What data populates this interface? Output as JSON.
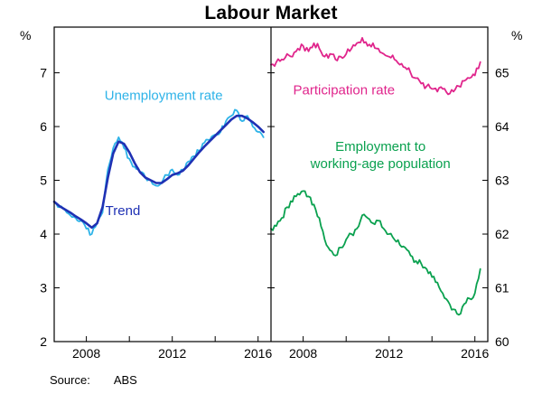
{
  "source": {
    "label": "Source:",
    "value": "ABS"
  },
  "chart_data": {
    "type": "line",
    "title": "Labour Market",
    "x_start": 2006.5,
    "x_step": 0.25,
    "x_range": [
      2006.5,
      2016.6
    ],
    "x_ticks": [
      2008,
      2010,
      2012,
      2014,
      2016
    ],
    "x_tick_labels": [
      "2008",
      "2012",
      "2016"
    ],
    "grid": "off",
    "legend_position": "inline-labels",
    "panels": [
      {
        "name": "unemployment-panel",
        "axis_side": "left",
        "unit": "%",
        "ylim": [
          2,
          7.85
        ],
        "yticks": [
          2,
          3,
          4,
          5,
          6,
          7
        ],
        "series": [
          {
            "id": "unemployment-rate",
            "name": "Unemployment rate",
            "color": "#2eb3e8",
            "lw": 1.8,
            "jitter": 0.05,
            "values": [
              4.6,
              4.5,
              4.45,
              4.35,
              4.3,
              4.25,
              4.1,
              4.0,
              4.2,
              4.4,
              5.2,
              5.6,
              5.8,
              5.6,
              5.4,
              5.25,
              5.15,
              5.05,
              5.0,
              4.9,
              4.95,
              5.1,
              5.2,
              5.1,
              5.2,
              5.35,
              5.45,
              5.55,
              5.7,
              5.75,
              5.85,
              5.9,
              6.1,
              6.2,
              6.3,
              6.1,
              6.2,
              6.0,
              5.9,
              5.8
            ]
          },
          {
            "id": "trend",
            "name": "Trend",
            "color": "#1f31b4",
            "lw": 2.6,
            "jitter": 0,
            "values": [
              4.6,
              4.52,
              4.46,
              4.4,
              4.33,
              4.27,
              4.2,
              4.12,
              4.2,
              4.5,
              5.05,
              5.5,
              5.72,
              5.68,
              5.52,
              5.32,
              5.15,
              5.05,
              5.0,
              4.95,
              4.95,
              5.02,
              5.1,
              5.13,
              5.18,
              5.28,
              5.4,
              5.52,
              5.63,
              5.73,
              5.83,
              5.93,
              6.03,
              6.13,
              6.2,
              6.2,
              6.15,
              6.08,
              6.0,
              5.9
            ]
          }
        ],
        "labels": [
          {
            "text": "Unemployment rate",
            "x": 2011.6,
            "y": 6.5,
            "color": "#2eb3e8"
          },
          {
            "text": "Trend",
            "x": 2009.7,
            "y": 4.35,
            "color": "#1f31b4"
          }
        ]
      },
      {
        "name": "participation-panel",
        "axis_side": "right",
        "unit": "%",
        "ylim": [
          60,
          65.85
        ],
        "yticks": [
          60,
          61,
          62,
          63,
          64,
          65
        ],
        "series": [
          {
            "id": "participation-rate",
            "name": "Participation rate",
            "color": "#e0258c",
            "lw": 1.8,
            "jitter": 0.06,
            "values": [
              65.15,
              65.2,
              65.25,
              65.35,
              65.3,
              65.45,
              65.5,
              65.4,
              65.55,
              65.45,
              65.3,
              65.35,
              65.25,
              65.3,
              65.35,
              65.45,
              65.55,
              65.65,
              65.5,
              65.55,
              65.45,
              65.35,
              65.3,
              65.25,
              65.15,
              65.1,
              65.0,
              64.9,
              64.8,
              64.75,
              64.7,
              64.65,
              64.7,
              64.6,
              64.65,
              64.75,
              64.85,
              64.9,
              64.95,
              65.2
            ]
          },
          {
            "id": "employment-to-working-age-population",
            "name": "Employment to working-age population",
            "color": "#0aa14f",
            "lw": 1.8,
            "jitter": 0.06,
            "values": [
              62.1,
              62.15,
              62.3,
              62.5,
              62.6,
              62.75,
              62.8,
              62.7,
              62.55,
              62.3,
              61.9,
              61.7,
              61.6,
              61.75,
              61.9,
              62.0,
              62.1,
              62.35,
              62.3,
              62.2,
              62.25,
              62.1,
              62.0,
              61.9,
              61.8,
              61.75,
              61.6,
              61.5,
              61.45,
              61.35,
              61.2,
              61.1,
              60.9,
              60.75,
              60.6,
              60.5,
              60.7,
              60.8,
              60.9,
              61.35
            ]
          }
        ],
        "labels": [
          {
            "text": "Participation rate",
            "x": 2009.9,
            "y": 64.6,
            "color": "#e0258c"
          },
          {
            "text": "Employment to\nworking-age population",
            "x": 2011.6,
            "y": 63.55,
            "color": "#0aa14f"
          }
        ]
      }
    ]
  }
}
